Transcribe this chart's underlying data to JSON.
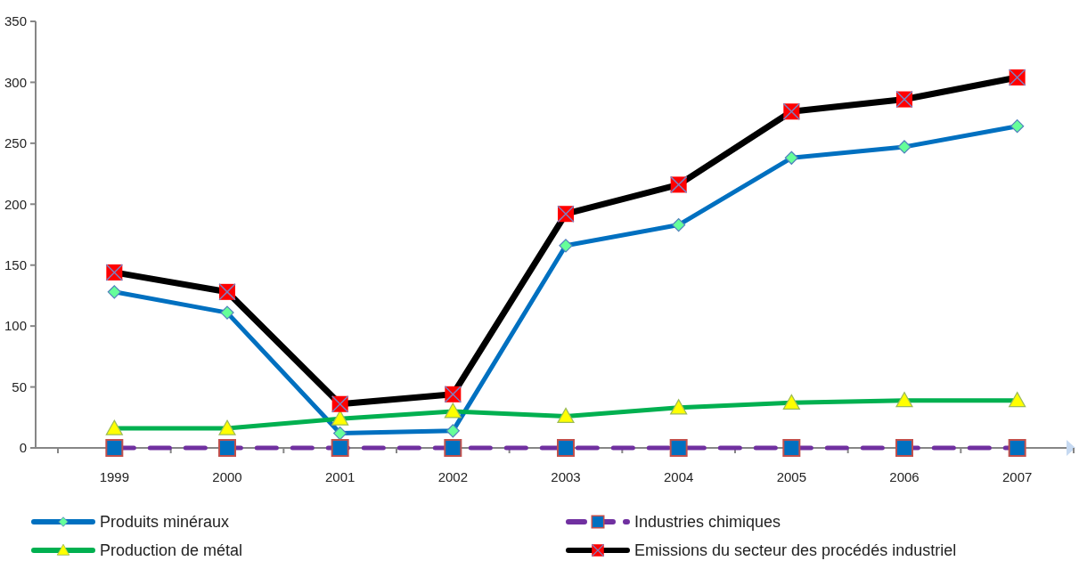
{
  "chart_data": {
    "type": "line",
    "categories": [
      "1999",
      "2000",
      "2001",
      "2002",
      "2003",
      "2004",
      "2005",
      "2006",
      "2007"
    ],
    "series": [
      {
        "name": "Produits minéraux",
        "color": "#0070c0",
        "marker": "diamond",
        "values": [
          128,
          111,
          12,
          14,
          166,
          183,
          238,
          247,
          264
        ]
      },
      {
        "name": "Industries chimiques",
        "color": "#7030a0",
        "marker": "square",
        "line_style": "dashed",
        "values": [
          0,
          0,
          0,
          0,
          0,
          0,
          0,
          0,
          0
        ]
      },
      {
        "name": "Production de métal",
        "color": "#00b050",
        "marker": "triangle",
        "values": [
          16,
          16,
          24,
          30,
          26,
          33,
          37,
          39,
          39
        ]
      },
      {
        "name": "Emissions du secteur des procédés industriel",
        "color": "#000000",
        "marker": "square",
        "values": [
          144,
          128,
          36,
          44,
          192,
          216,
          276,
          286,
          304
        ]
      }
    ],
    "ylim": [
      0,
      350
    ],
    "yticks": [
      0,
      50,
      100,
      150,
      200,
      250,
      300,
      350
    ],
    "grid": false,
    "legend": "bottom",
    "line_style": "solid"
  }
}
